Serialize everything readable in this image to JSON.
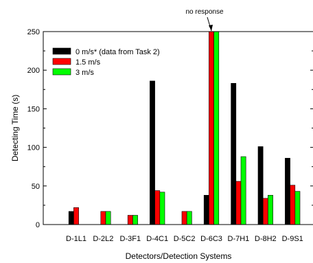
{
  "chart_data": {
    "type": "bar",
    "title": "",
    "xlabel": "Detectors/Detection Systems",
    "ylabel": "Detecting Time (s)",
    "ylim": [
      0,
      250
    ],
    "yticks": [
      0,
      50,
      100,
      150,
      200,
      250
    ],
    "categories": [
      "D-1L1",
      "D-2L2",
      "D-3F1",
      "D-4C1",
      "D-5C2",
      "D-6C3",
      "D-7H1",
      "D-8H2",
      "D-9S1"
    ],
    "series": [
      {
        "name": "0 m/s* (data from Task 2)",
        "color": "#000000",
        "values": [
          17,
          null,
          null,
          186,
          null,
          38,
          183,
          101,
          86
        ]
      },
      {
        "name": "1.5 m/s",
        "color": "#ff0000",
        "values": [
          22,
          17,
          12,
          44,
          17,
          250,
          56,
          34,
          51
        ]
      },
      {
        "name": "3 m/s",
        "color": "#00ff00",
        "values": [
          null,
          17,
          12,
          42,
          17,
          250,
          88,
          38,
          43
        ]
      }
    ],
    "legend_position": "top-left",
    "grid": false,
    "annotations": [
      {
        "text": "no response",
        "category": "D-6C3",
        "value": 250
      }
    ]
  }
}
